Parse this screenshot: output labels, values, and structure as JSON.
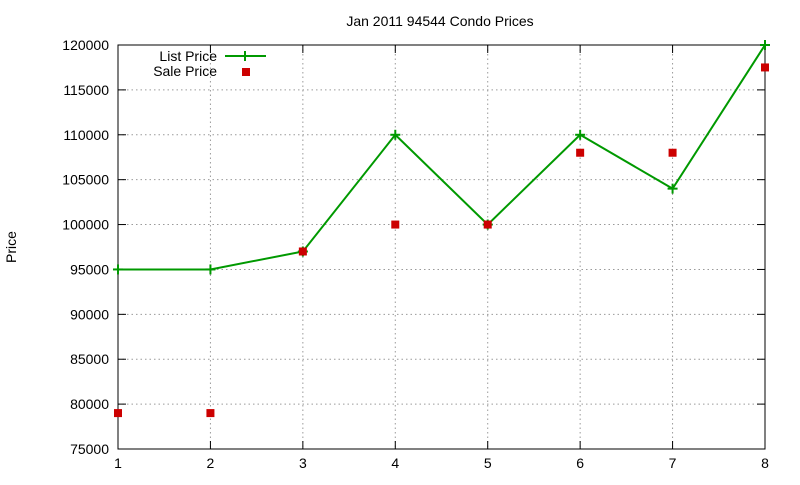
{
  "chart_data": {
    "type": "line",
    "title": "Jan 2011 94544 Condo Prices",
    "xlabel": "",
    "ylabel": "Price",
    "xlim": [
      1,
      8
    ],
    "ylim": [
      75000,
      120000
    ],
    "x_ticks": [
      1,
      2,
      3,
      4,
      5,
      6,
      7,
      8
    ],
    "y_ticks": [
      75000,
      80000,
      85000,
      90000,
      95000,
      100000,
      105000,
      110000,
      115000,
      120000
    ],
    "grid": true,
    "legend_position": "top-left",
    "series": [
      {
        "name": "List Price",
        "style": "line-with-plus-markers",
        "color": "#009900",
        "x": [
          1,
          2,
          3,
          4,
          5,
          6,
          7,
          8
        ],
        "values": [
          95000,
          95000,
          97000,
          110000,
          100000,
          110000,
          104000,
          120000
        ]
      },
      {
        "name": "Sale Price",
        "style": "square-markers",
        "color": "#cc0000",
        "x": [
          1,
          2,
          3,
          4,
          5,
          6,
          7,
          8
        ],
        "values": [
          79000,
          79000,
          97000,
          100000,
          100000,
          108000,
          108000,
          117500
        ]
      }
    ]
  }
}
